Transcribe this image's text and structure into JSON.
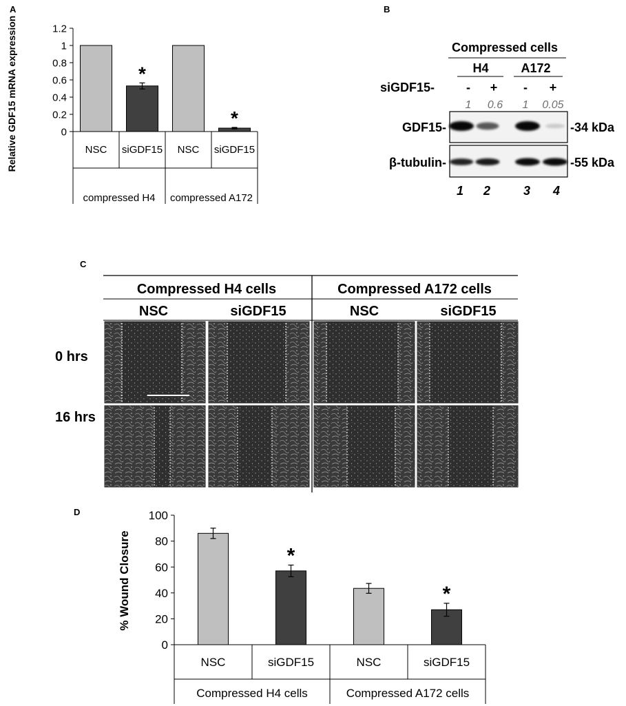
{
  "panels": {
    "a": {
      "letter": "A"
    },
    "b": {
      "letter": "B"
    },
    "c": {
      "letter": "C"
    },
    "d": {
      "letter": "D"
    }
  },
  "chart_data": [
    {
      "id": "A",
      "type": "bar",
      "categories": [
        "NSC",
        "siGDF15",
        "NSC",
        "siGDF15"
      ],
      "groups": [
        "compressed H4",
        "compressed A172"
      ],
      "values": [
        1.0,
        0.53,
        1.0,
        0.04
      ],
      "errors": [
        0.0,
        0.035,
        0.0,
        0.008
      ],
      "significance": [
        "",
        "*",
        "",
        "*"
      ],
      "bar_colors": [
        "#bfbfbf",
        "#404040",
        "#bfbfbf",
        "#404040"
      ],
      "ylabel": "Relative GDF15 mRNA expression",
      "ylim": [
        0,
        1.2
      ],
      "yticks": [
        0,
        0.2,
        0.4,
        0.6,
        0.8,
        1,
        1.2
      ],
      "ytick_labels": [
        "0",
        "0.2",
        "0.4",
        "0.6",
        "0.8",
        "1",
        "1.2"
      ],
      "grid": false
    },
    {
      "id": "D",
      "type": "bar",
      "categories": [
        "NSC",
        "siGDF15",
        "NSC",
        "siGDF15"
      ],
      "groups": [
        "Compressed H4 cells",
        "Compressed A172 cells"
      ],
      "values": [
        86,
        57,
        43.5,
        27
      ],
      "errors": [
        4,
        4.5,
        3.8,
        5
      ],
      "significance": [
        "",
        "*",
        "",
        "*"
      ],
      "bar_colors": [
        "#bfbfbf",
        "#404040",
        "#bfbfbf",
        "#404040"
      ],
      "ylabel": "% Wound Closure",
      "ylim": [
        0,
        100
      ],
      "yticks": [
        0,
        20,
        40,
        60,
        80,
        100
      ],
      "ytick_labels": [
        "0",
        "20",
        "40",
        "60",
        "80",
        "100"
      ],
      "grid": false
    }
  ],
  "western_blot": {
    "title": "Compressed cells",
    "cell_lines": [
      "H4",
      "A172"
    ],
    "sirna_label": "siGDF15-",
    "sirna_status": [
      "-",
      "+",
      "-",
      "+"
    ],
    "quantification": [
      "1",
      "0.6",
      "1",
      "0.05"
    ],
    "gdf15_relative_intensity": [
      1,
      0.6,
      1,
      0.05
    ],
    "tubulin_relative_intensity": [
      0.75,
      0.85,
      1,
      1
    ],
    "blots": [
      {
        "label": "GDF15-",
        "size": "-34 kDa"
      },
      {
        "label": "β-tubulin-",
        "size": "-55 kDa"
      }
    ],
    "lanes": [
      "1",
      "2",
      "3",
      "4"
    ]
  },
  "wound_assay": {
    "groups": [
      "Compressed H4 cells",
      "Compressed A172 cells"
    ],
    "conditions": [
      "NSC",
      "siGDF15",
      "NSC",
      "siGDF15"
    ],
    "timepoints": [
      "0 hrs",
      "16 hrs"
    ]
  }
}
